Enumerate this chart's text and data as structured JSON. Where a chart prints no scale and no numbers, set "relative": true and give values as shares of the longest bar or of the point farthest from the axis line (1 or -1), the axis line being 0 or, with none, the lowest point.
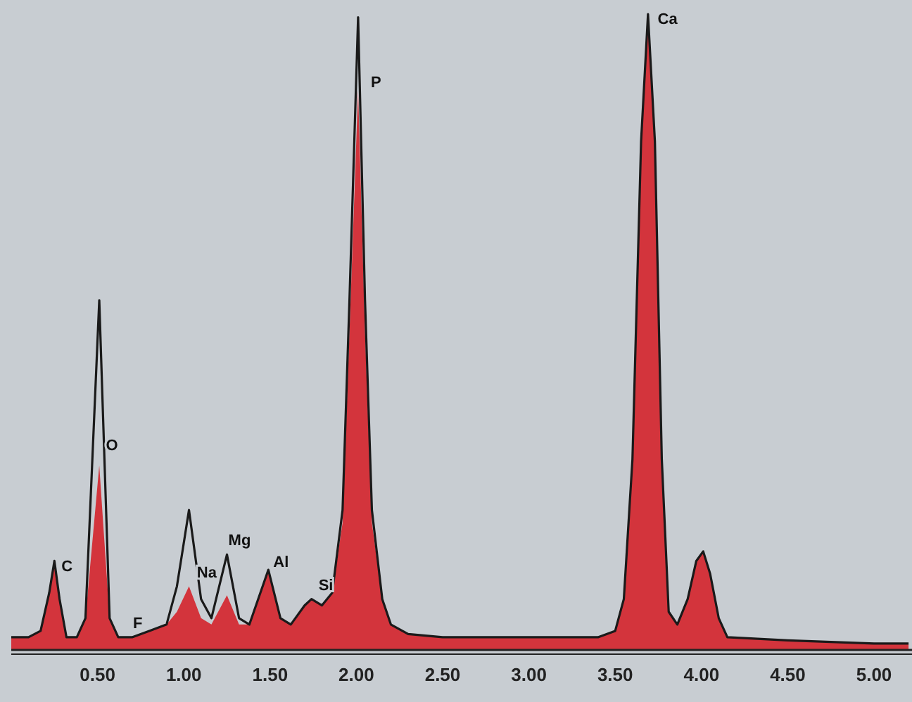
{
  "chart_data": {
    "type": "area",
    "relative": true,
    "x": [
      0.0,
      0.1,
      0.17,
      0.22,
      0.25,
      0.28,
      0.32,
      0.38,
      0.43,
      0.47,
      0.51,
      0.54,
      0.57,
      0.62,
      0.7,
      0.8,
      0.9,
      0.96,
      1.03,
      1.1,
      1.16,
      1.25,
      1.32,
      1.38,
      1.49,
      1.56,
      1.62,
      1.7,
      1.74,
      1.8,
      1.86,
      1.92,
      1.96,
      2.01,
      2.05,
      2.09,
      2.15,
      2.2,
      2.3,
      2.5,
      2.8,
      3.1,
      3.4,
      3.5,
      3.55,
      3.6,
      3.65,
      3.69,
      3.73,
      3.77,
      3.81,
      3.86,
      3.92,
      3.97,
      4.01,
      4.05,
      4.1,
      4.15,
      4.5,
      5.0,
      5.2
    ],
    "series": [
      {
        "color": "#d3343c",
        "values": [
          0.02,
          0.02,
          0.03,
          0.09,
          0.14,
          0.08,
          0.02,
          0.02,
          0.05,
          0.17,
          0.29,
          0.17,
          0.05,
          0.02,
          0.02,
          0.03,
          0.04,
          0.06,
          0.1,
          0.05,
          0.04,
          0.086,
          0.04,
          0.04,
          0.126,
          0.05,
          0.04,
          0.07,
          0.08,
          0.07,
          0.09,
          0.2,
          0.5,
          0.88,
          0.5,
          0.2,
          0.08,
          0.04,
          0.025,
          0.02,
          0.02,
          0.02,
          0.02,
          0.03,
          0.08,
          0.3,
          0.8,
          1.0,
          0.8,
          0.3,
          0.06,
          0.04,
          0.08,
          0.14,
          0.155,
          0.12,
          0.05,
          0.02,
          0.015,
          0.01,
          0.01
        ]
      },
      {
        "type": "line",
        "color": "#1a1a1a",
        "values": [
          0.02,
          0.02,
          0.03,
          0.09,
          0.14,
          0.08,
          0.02,
          0.02,
          0.05,
          0.3,
          0.55,
          0.3,
          0.05,
          0.02,
          0.02,
          0.03,
          0.04,
          0.1,
          0.22,
          0.08,
          0.05,
          0.15,
          0.05,
          0.04,
          0.126,
          0.05,
          0.04,
          0.07,
          0.08,
          0.07,
          0.09,
          0.22,
          0.55,
          0.995,
          0.55,
          0.22,
          0.08,
          0.04,
          0.025,
          0.02,
          0.02,
          0.02,
          0.02,
          0.03,
          0.08,
          0.3,
          0.8,
          1.0,
          0.8,
          0.3,
          0.06,
          0.04,
          0.08,
          0.14,
          0.155,
          0.12,
          0.05,
          0.02,
          0.015,
          0.01,
          0.01
        ]
      }
    ],
    "xlim": [
      0,
      5.22
    ],
    "xticks": [
      {
        "value": 0.5,
        "label": "0.50"
      },
      {
        "value": 1,
        "label": "1.00"
      },
      {
        "value": 1.5,
        "label": "1.50"
      },
      {
        "value": 2,
        "label": "2.00"
      },
      {
        "value": 2.5,
        "label": "2.50"
      },
      {
        "value": 3,
        "label": "3.00"
      },
      {
        "value": 3.5,
        "label": "3.50"
      },
      {
        "value": 4,
        "label": "4.00"
      },
      {
        "value": 4.5,
        "label": "4.50"
      },
      {
        "value": 5,
        "label": "5.00"
      }
    ],
    "annotations": [
      {
        "text": "C",
        "x": 0.25,
        "y": 0.12
      },
      {
        "text": "O",
        "x": 0.51,
        "y": 0.31
      },
      {
        "text": "F",
        "x": 0.66,
        "y": 0.03
      },
      {
        "text": "Na",
        "x": 1.06,
        "y": 0.11
      },
      {
        "text": "Mg",
        "x": 1.25,
        "y": 0.16
      },
      {
        "text": "Al",
        "x": 1.49,
        "y": 0.126
      },
      {
        "text": "Si",
        "x": 1.75,
        "y": 0.09
      },
      {
        "text": "P",
        "x": 2.04,
        "y": 0.88
      },
      {
        "text": "Ca",
        "x": 3.73,
        "y": 0.98
      }
    ]
  }
}
